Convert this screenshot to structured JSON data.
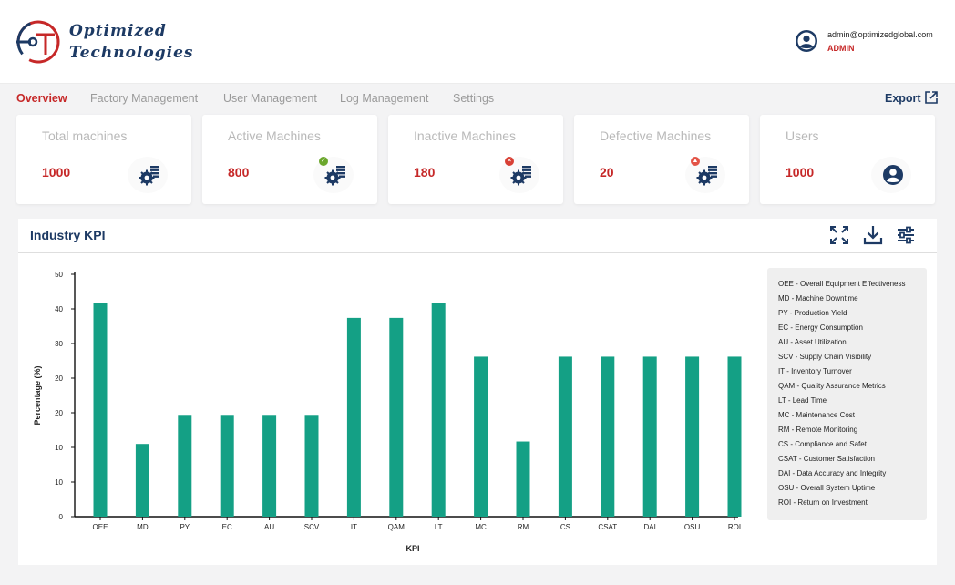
{
  "header": {
    "brand_line1": "Optimized",
    "brand_line2": "Technologies",
    "user_email": "admin@optimizedglobal.com",
    "user_role": "ADMIN"
  },
  "nav": {
    "items": [
      "Overview",
      "Factory Management",
      "User Management",
      "Log Management",
      "Settings"
    ],
    "active": "Overview",
    "export_label": "Export"
  },
  "cards": [
    {
      "title": "Total machines",
      "value": "1000",
      "icon": "machines-icon",
      "badge": ""
    },
    {
      "title": "Active Machines",
      "value": "800",
      "icon": "machines-icon",
      "badge": "check"
    },
    {
      "title": "Inactive Machines",
      "value": "180",
      "icon": "machines-icon",
      "badge": "x"
    },
    {
      "title": "Defective Machines",
      "value": "20",
      "icon": "machines-icon",
      "badge": "warning"
    },
    {
      "title": "Users",
      "value": "1000",
      "icon": "user-icon",
      "badge": ""
    }
  ],
  "colors": {
    "accent_red": "#c62828",
    "navy": "#1d3a64",
    "bar": "#14a085",
    "badge_check": "#6aa62b",
    "badge_x": "#d84035",
    "badge_warning": "#e35346"
  },
  "panel": {
    "title": "Industry KPI",
    "tools": [
      "expand-icon",
      "download-icon",
      "filter-sliders-icon"
    ]
  },
  "chart_data": {
    "type": "bar",
    "categories": [
      "OEE",
      "MD",
      "PY",
      "EC",
      "AU",
      "SCV",
      "IT",
      "QAM",
      "LT",
      "MC",
      "RM",
      "CS",
      "CSAT",
      "DAI",
      "OSU",
      "ROI"
    ],
    "values": [
      44,
      15,
      21,
      21,
      21,
      21,
      41,
      41,
      44,
      33,
      15.5,
      33,
      33,
      33,
      33,
      33
    ],
    "ytick_labels": [
      "0",
      "10",
      "10",
      "20",
      "20",
      "30",
      "40",
      "50"
    ],
    "ylim": [
      0,
      50
    ],
    "xlabel": "KPI",
    "ylabel": "Percentage (%)",
    "grid": false,
    "legend_position": "right"
  },
  "legend": [
    "OEE - Overall Equipment Effectiveness",
    "MD - Machine Downtime",
    "PY - Production Yield",
    "EC - Energy Consumption",
    "AU - Asset Utilization",
    "SCV - Supply Chain Visibility",
    "IT - Inventory Turnover",
    "QAM - Quality Assurance Metrics",
    "LT - Lead Time",
    "MC - Maintenance Cost",
    "RM - Remote Monitoring",
    "CS - Compliance and Safet",
    "CSAT - Customer Satisfaction",
    "DAI - Data Accuracy and Integrity",
    "OSU - Overall System Uptime",
    "ROI - Return on Investment"
  ]
}
